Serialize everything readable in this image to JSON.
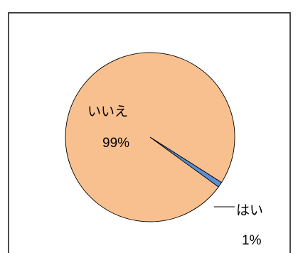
{
  "chart_data": {
    "type": "pie",
    "categories": [
      "いいえ",
      "はい"
    ],
    "values": [
      99,
      1
    ],
    "value_labels": [
      "99%",
      "1%"
    ],
    "colors": [
      "#f9c08f",
      "#5b8fd6"
    ],
    "title": "",
    "legend": "none",
    "data_labels_shown": true
  }
}
